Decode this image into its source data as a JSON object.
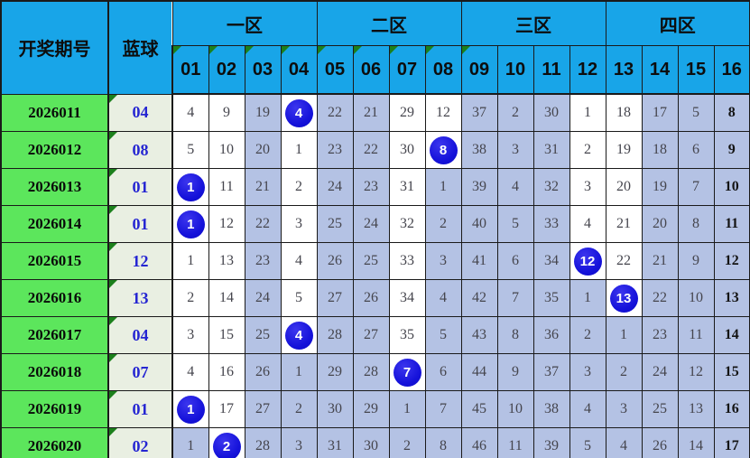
{
  "colors": {
    "header_bg": "#18a5e8",
    "period_bg": "#5ce65c",
    "bluecol_bg": "#e9efe2",
    "shaded_bg": "#b4c2e4",
    "circle_blue": "#1512da",
    "marker_green": "#1c801c",
    "blueball_text": "#2525d2",
    "cell_text": "#45454d"
  },
  "table": {
    "corner_header": "开奖期号",
    "blue_header": "蓝球",
    "zones": [
      {
        "label": "一区"
      },
      {
        "label": "二区"
      },
      {
        "label": "三区"
      },
      {
        "label": "四区"
      }
    ],
    "col_headers": [
      "01",
      "02",
      "03",
      "04",
      "05",
      "06",
      "07",
      "08",
      "09",
      "10",
      "11",
      "12",
      "13",
      "14",
      "15",
      "16"
    ],
    "marked_cols": [
      "01",
      "02",
      "03",
      "04",
      "05",
      "06",
      "07",
      "08",
      "09"
    ],
    "rows": [
      {
        "period": "2026011",
        "blue": "04",
        "values": [
          4,
          9,
          19,
          4,
          22,
          21,
          29,
          12,
          37,
          2,
          30,
          1,
          18,
          17,
          5,
          8
        ],
        "shaded": "0010110011100111"
      },
      {
        "period": "2026012",
        "blue": "08",
        "values": [
          5,
          10,
          20,
          1,
          23,
          22,
          30,
          8,
          38,
          3,
          31,
          2,
          19,
          18,
          6,
          9
        ],
        "shaded": "0010110011100111"
      },
      {
        "period": "2026013",
        "blue": "01",
        "values": [
          1,
          11,
          21,
          2,
          24,
          23,
          31,
          1,
          39,
          4,
          32,
          3,
          20,
          19,
          7,
          10
        ],
        "shaded": "0010110111100111"
      },
      {
        "period": "2026014",
        "blue": "01",
        "values": [
          1,
          12,
          22,
          3,
          25,
          24,
          32,
          2,
          40,
          5,
          33,
          4,
          21,
          20,
          8,
          11
        ],
        "shaded": "0010110111100111"
      },
      {
        "period": "2026015",
        "blue": "12",
        "values": [
          1,
          13,
          23,
          4,
          26,
          25,
          33,
          3,
          41,
          6,
          34,
          12,
          22,
          21,
          9,
          12
        ],
        "shaded": "0010110111100111"
      },
      {
        "period": "2026016",
        "blue": "13",
        "values": [
          2,
          14,
          24,
          5,
          27,
          26,
          34,
          4,
          42,
          7,
          35,
          1,
          13,
          22,
          10,
          13
        ],
        "shaded": "0010110111110111"
      },
      {
        "period": "2026017",
        "blue": "04",
        "values": [
          3,
          15,
          25,
          4,
          28,
          27,
          35,
          5,
          43,
          8,
          36,
          2,
          1,
          23,
          11,
          14
        ],
        "shaded": "0010110111111111"
      },
      {
        "period": "2026018",
        "blue": "07",
        "values": [
          4,
          16,
          26,
          1,
          29,
          28,
          7,
          6,
          44,
          9,
          37,
          3,
          2,
          24,
          12,
          15
        ],
        "shaded": "0011110111111111"
      },
      {
        "period": "2026019",
        "blue": "01",
        "values": [
          1,
          17,
          27,
          2,
          30,
          29,
          1,
          7,
          45,
          10,
          38,
          4,
          3,
          25,
          13,
          16
        ],
        "shaded": "0011111111111111"
      },
      {
        "period": "2026020",
        "blue": "02",
        "values": [
          1,
          2,
          28,
          3,
          31,
          30,
          2,
          8,
          46,
          11,
          39,
          5,
          4,
          26,
          14,
          17
        ],
        "shaded": "1011111111111111"
      }
    ]
  },
  "chart_data": {
    "type": "table",
    "title": "",
    "column_groups": [
      "一区",
      "二区",
      "三区",
      "四区"
    ],
    "number_columns": [
      "01",
      "02",
      "03",
      "04",
      "05",
      "06",
      "07",
      "08",
      "09",
      "10",
      "11",
      "12",
      "13",
      "14",
      "15",
      "16"
    ],
    "periods": [
      "2026011",
      "2026012",
      "2026013",
      "2026014",
      "2026015",
      "2026016",
      "2026017",
      "2026018",
      "2026019",
      "2026020"
    ],
    "blue_balls": [
      "04",
      "08",
      "01",
      "01",
      "12",
      "13",
      "04",
      "07",
      "01",
      "02"
    ],
    "miss_matrix": [
      [
        4,
        9,
        19,
        4,
        22,
        21,
        29,
        12,
        37,
        2,
        30,
        1,
        18,
        17,
        5,
        8
      ],
      [
        5,
        10,
        20,
        1,
        23,
        22,
        30,
        8,
        38,
        3,
        31,
        2,
        19,
        18,
        6,
        9
      ],
      [
        1,
        11,
        21,
        2,
        24,
        23,
        31,
        1,
        39,
        4,
        32,
        3,
        20,
        19,
        7,
        10
      ],
      [
        1,
        12,
        22,
        3,
        25,
        24,
        32,
        2,
        40,
        5,
        33,
        4,
        21,
        20,
        8,
        11
      ],
      [
        1,
        13,
        23,
        4,
        26,
        25,
        33,
        3,
        41,
        6,
        34,
        12,
        22,
        21,
        9,
        12
      ],
      [
        2,
        14,
        24,
        5,
        27,
        26,
        34,
        4,
        42,
        7,
        35,
        1,
        13,
        22,
        10,
        13
      ],
      [
        3,
        15,
        25,
        4,
        28,
        27,
        35,
        5,
        43,
        8,
        36,
        2,
        1,
        23,
        11,
        14
      ],
      [
        4,
        16,
        26,
        1,
        29,
        28,
        7,
        6,
        44,
        9,
        37,
        3,
        2,
        24,
        12,
        15
      ],
      [
        1,
        17,
        27,
        2,
        30,
        29,
        1,
        7,
        45,
        10,
        38,
        4,
        3,
        25,
        13,
        16
      ],
      [
        1,
        2,
        28,
        3,
        31,
        30,
        2,
        8,
        46,
        11,
        39,
        5,
        4,
        26,
        14,
        17
      ]
    ],
    "circled_cells_note": "In each row the column equal to the blue ball number shows the ball inside a blue circle"
  }
}
